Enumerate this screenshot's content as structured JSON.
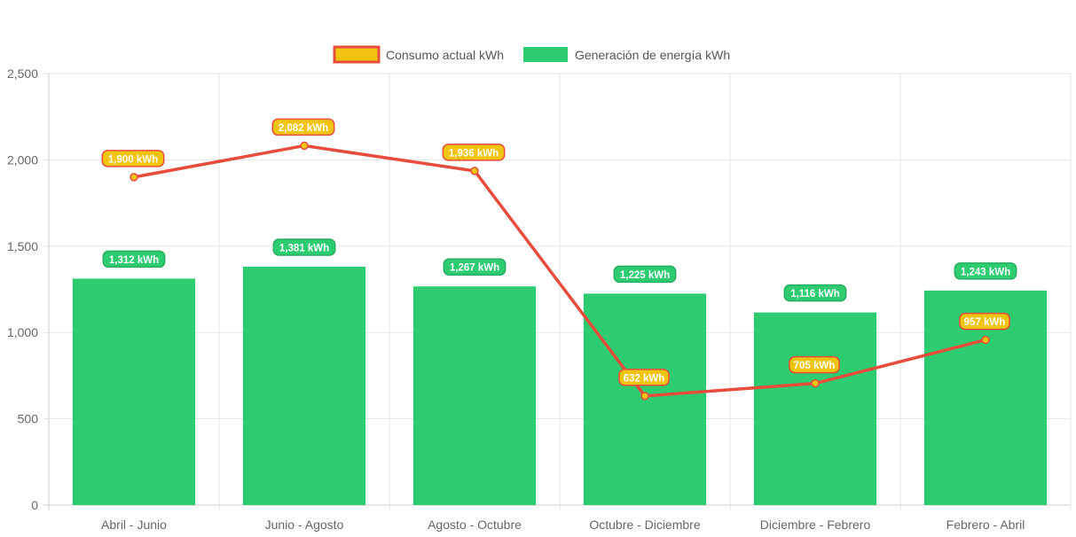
{
  "chart_data": {
    "type": "bar",
    "categories": [
      "Abril - Junio",
      "Junio - Agosto",
      "Agosto - Octubre",
      "Octubre - Diciembre",
      "Diciembre - Febrero",
      "Febrero - Abril"
    ],
    "series": [
      {
        "name": "Consumo actual kWh",
        "type": "line",
        "values": [
          1900,
          2082,
          1936,
          632,
          705,
          957
        ],
        "labels": [
          "1,900 kWh",
          "2,082 kWh",
          "1,936 kWh",
          "632 kWh",
          "705 kWh",
          "957 kWh"
        ],
        "color": "#e74c3c",
        "fill": "#f1c40f"
      },
      {
        "name": "Generación de energía kWh",
        "type": "bar",
        "values": [
          1312,
          1381,
          1267,
          1225,
          1116,
          1243
        ],
        "labels": [
          "1,312 kWh",
          "1,381 kWh",
          "1,267 kWh",
          "1,225 kWh",
          "1,116 kWh",
          "1,243 kWh"
        ],
        "color": "#2ecc71"
      }
    ],
    "ylim": [
      0,
      2500
    ],
    "yticks": [
      0,
      500,
      1000,
      1500,
      2000,
      2500
    ],
    "ytick_labels": [
      "0",
      "500",
      "1,000",
      "1,500",
      "2,000",
      "2,500"
    ],
    "grid": true,
    "legend_position": "top-center",
    "title": "",
    "xlabel": "",
    "ylabel": ""
  },
  "colors": {
    "grid": "#e5e5e5",
    "axis": "#cccccc",
    "tick_text": "#666666",
    "line": "#e74c3c",
    "line_label_fill": "#f1c40f",
    "bar": "#2ecc71",
    "bar_label_border": "#27ae60"
  }
}
